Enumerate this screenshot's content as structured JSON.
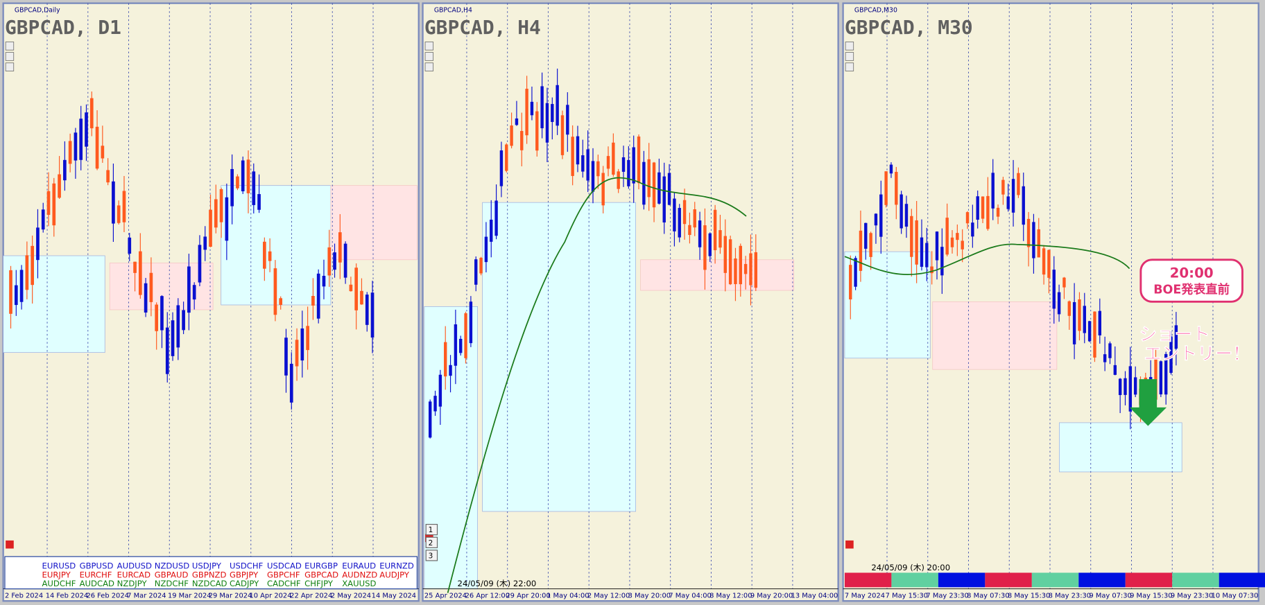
{
  "panels": [
    {
      "small_title": "GBPCAD,Daily",
      "title": "GBPCAD, D1",
      "x_labels": [
        "2 Feb 2024",
        "14 Feb 2024",
        "26 Feb 2024",
        "7 Mar 2024",
        "19 Mar 2024",
        "29 Mar 2024",
        "10 Apr 2024",
        "22 Apr 2024",
        "2 May 2024",
        "14 May 2024"
      ],
      "symbols": [
        [
          "EURUSD",
          "GBPUSD",
          "AUDUSD",
          "NZDUSD",
          "USDJPY",
          "USDCHF",
          "USDCAD",
          "EURGBP",
          "EURAUD",
          "EURNZD"
        ],
        [
          "EURJPY",
          "EURCHF",
          "EURCAD",
          "GBPAUD",
          "GBPNZD",
          "GBPJPY",
          "GBPCHF",
          "GBPCAD",
          "AUDNZD",
          "AUDJPY"
        ],
        [
          "AUDCHF",
          "AUDCAD",
          "NZDJPY",
          "NZDCHF",
          "NZDCAD",
          "CADJPY",
          "CADCHF",
          "CHFJPY",
          "XAUUSD"
        ]
      ]
    },
    {
      "small_title": "GBPCAD,H4",
      "title": "GBPCAD, H4",
      "x_labels": [
        "25 Apr 2024",
        "26 Apr 12:00",
        "29 Apr 20:00",
        "1 May 04:00",
        "2 May 12:00",
        "3 May 20:00",
        "7 May 04:00",
        "8 May 12:00",
        "9 May 20:00",
        "13 May 04:00"
      ],
      "timestamp": "24/05/09 (木) 22:00",
      "buttons": [
        "1",
        "2",
        "3"
      ]
    },
    {
      "small_title": "GBPCAD,M30",
      "title": "GBPCAD, M30",
      "x_labels": [
        "7 May 2024",
        "7 May 15:30",
        "7 May 23:30",
        "8 May 07:30",
        "8 May 15:30",
        "8 May 23:30",
        "9 May 07:30",
        "9 May 15:30",
        "9 May 23:30",
        "10 May 07:30"
      ],
      "timestamp": "24/05/09 (木) 20:00",
      "annotation_time": "20:00",
      "annotation_event": "BOE発表直前",
      "annotation_entry": [
        "ショート",
        "エントリー！"
      ]
    }
  ]
}
